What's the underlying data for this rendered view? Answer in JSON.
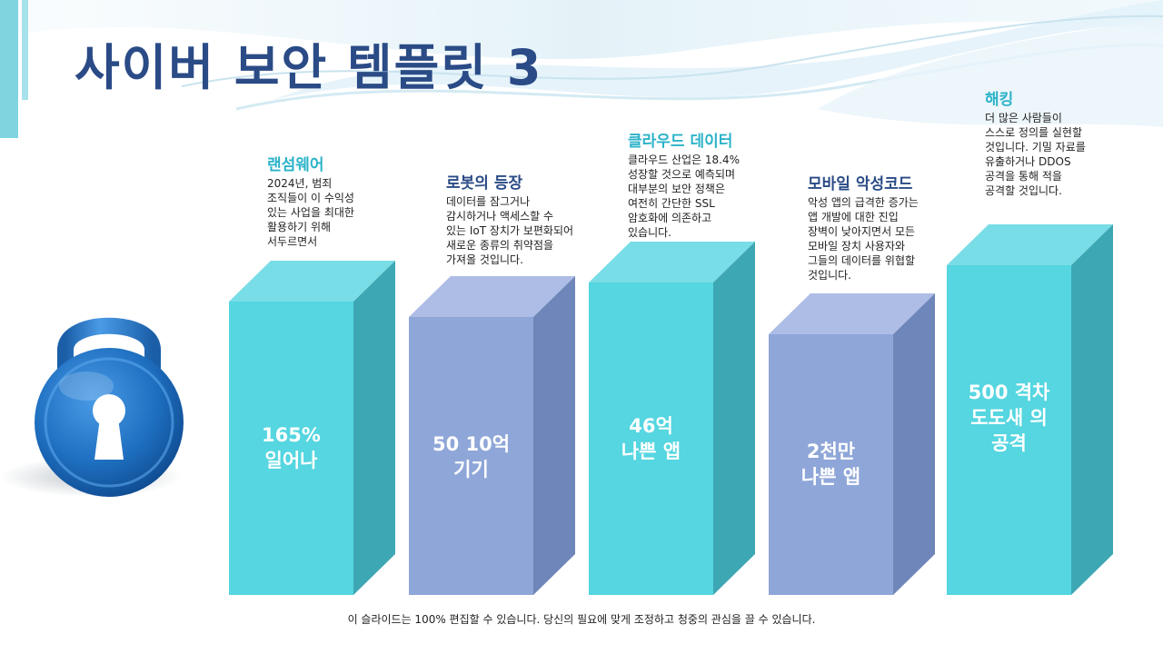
{
  "title": "사이버 보안 템플릿 3",
  "colors": {
    "teal": "#55d6e0",
    "teal_top": "#78dde6",
    "teal_side": "#3ea7b4",
    "lavender": "#8fa6d8",
    "lavender_top": "#aebde6",
    "lavender_side": "#6f86ba",
    "title": "#2a4b86",
    "callout_title": "#2bb3c8",
    "callout_title_alt": "#2a4b86",
    "lock": "#1e6fc0"
  },
  "lock_icon": "padlock-icon",
  "columns": [
    {
      "value_lines": [
        "165%",
        "일어나"
      ],
      "heading": "랜섬웨어",
      "body_lines": [
        "2024년, 범죄",
        "조직들이 이 수익성",
        "있는 사업을 최대한",
        "활용하기 위해",
        "서두르면서"
      ]
    },
    {
      "value_lines": [
        "50 10억",
        "기기"
      ],
      "heading": "로봇의 등장",
      "body_lines": [
        "데이터를 잠그거나",
        "감시하거나 액세스할 수",
        "있는 IoT 장치가 보편화되어",
        "새로운 종류의 취약점을",
        "가져올 것입니다."
      ]
    },
    {
      "value_lines": [
        "46억",
        "나쁜 앱"
      ],
      "heading": "클라우드 데이터",
      "body_lines": [
        "클라우드 산업은 18.4%",
        "성장할 것으로 예측되며",
        "대부분의 보안 정책은",
        "여전히 간단한 SSL",
        "암호화에 의존하고",
        "있습니다."
      ]
    },
    {
      "value_lines": [
        "2천만",
        "나쁜 앱"
      ],
      "heading": "모바일 악성코드",
      "body_lines": [
        "악성 앱의 급격한 증가는",
        "앱 개발에 대한 진입",
        "장벽이 낮아지면서 모든",
        "모바일 장치 사용자와",
        "그들의 데이터를 위협할",
        "것입니다."
      ]
    },
    {
      "value_lines": [
        "500 격차",
        "도도새 의",
        "공격"
      ],
      "heading": "해킹",
      "body_lines": [
        "더 많은 사람들이",
        "스스로 정의를 실현할",
        "것입니다. 기밀 자료를",
        "유출하거나 DDOS",
        "공격을 통해 적을",
        "공격할 것입니다."
      ]
    }
  ],
  "footer": "이 슬라이드는 100% 편집할 수 있습니다. 당신의 필요에 맞게 조정하고 청중의 관심을 끌 수 있습니다."
}
